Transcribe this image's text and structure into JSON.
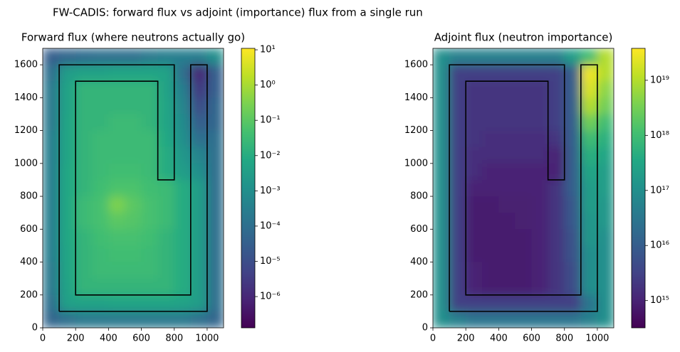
{
  "title": "FW-CADIS: forward flux vs adjoint (importance) flux from a single run",
  "chart_data": [
    {
      "type": "heatmap",
      "title": "Forward flux (where neutrons actually go)",
      "xlim": [
        0,
        1100
      ],
      "ylim": [
        0,
        1700
      ],
      "xticks": [
        0,
        200,
        400,
        600,
        800,
        1000
      ],
      "yticks": [
        0,
        200,
        400,
        600,
        800,
        1000,
        1200,
        1400,
        1600
      ],
      "xbins": [
        0,
        100,
        200,
        300,
        400,
        500,
        600,
        700,
        800,
        900,
        1000,
        1100
      ],
      "ybins": [
        1700,
        1600,
        1500,
        1400,
        1300,
        1200,
        1100,
        1000,
        900,
        800,
        700,
        600,
        500,
        400,
        300,
        200,
        100,
        0
      ],
      "z": [
        [
          3e-05,
          5e-05,
          8e-05,
          0.0001,
          0.0001,
          0.0001,
          0.0002,
          0.0003,
          0.0003,
          0.0003,
          0.001
        ],
        [
          0.0001,
          0.003,
          0.005,
          0.005,
          0.006,
          0.006,
          0.006,
          0.005,
          0.0001,
          1e-06,
          3e-05
        ],
        [
          0.0002,
          0.005,
          0.02,
          0.02,
          0.02,
          0.02,
          0.02,
          0.005,
          0.0003,
          3e-06,
          3e-05
        ],
        [
          0.0002,
          0.005,
          0.02,
          0.02,
          0.02,
          0.02,
          0.02,
          0.006,
          0.0005,
          1e-05,
          5e-05
        ],
        [
          0.0002,
          0.006,
          0.02,
          0.02,
          0.03,
          0.03,
          0.02,
          0.006,
          0.0008,
          3e-05,
          5e-05
        ],
        [
          0.0003,
          0.006,
          0.02,
          0.03,
          0.03,
          0.03,
          0.03,
          0.008,
          0.001,
          0.0001,
          0.0001
        ],
        [
          0.0003,
          0.006,
          0.02,
          0.03,
          0.03,
          0.03,
          0.03,
          0.01,
          0.002,
          0.0005,
          0.0001
        ],
        [
          0.0003,
          0.007,
          0.02,
          0.03,
          0.04,
          0.04,
          0.03,
          0.01,
          0.003,
          0.001,
          0.0001
        ],
        [
          0.0003,
          0.007,
          0.02,
          0.04,
          0.06,
          0.06,
          0.04,
          0.03,
          0.01,
          0.003,
          0.0001
        ],
        [
          0.0003,
          0.007,
          0.03,
          0.05,
          0.3,
          0.1,
          0.05,
          0.03,
          0.01,
          0.003,
          0.0001
        ],
        [
          0.0003,
          0.007,
          0.03,
          0.05,
          0.1,
          0.08,
          0.05,
          0.03,
          0.01,
          0.003,
          0.0001
        ],
        [
          0.0003,
          0.007,
          0.02,
          0.04,
          0.05,
          0.05,
          0.04,
          0.02,
          0.01,
          0.003,
          0.0001
        ],
        [
          0.0003,
          0.006,
          0.02,
          0.03,
          0.04,
          0.04,
          0.03,
          0.02,
          0.01,
          0.003,
          0.0001
        ],
        [
          0.0002,
          0.006,
          0.02,
          0.03,
          0.03,
          0.03,
          0.03,
          0.02,
          0.01,
          0.003,
          0.0001
        ],
        [
          0.0002,
          0.005,
          0.02,
          0.02,
          0.02,
          0.02,
          0.02,
          0.02,
          0.01,
          0.003,
          0.0001
        ],
        [
          0.0001,
          0.004,
          0.005,
          0.005,
          0.006,
          0.006,
          0.006,
          0.006,
          0.005,
          0.003,
          0.0001
        ],
        [
          5e-05,
          0.0001,
          0.0002,
          0.0002,
          0.0002,
          0.0002,
          0.0002,
          0.0002,
          0.0002,
          0.0001,
          5e-05
        ]
      ],
      "colormap": "viridis",
      "log_color": true,
      "clim": [
        1.3e-07,
        11
      ],
      "cticks": [
        {
          "value": 10,
          "label": "10¹"
        },
        {
          "value": 1,
          "label": "10⁰"
        },
        {
          "value": 0.1,
          "label": "10⁻¹"
        },
        {
          "value": 0.01,
          "label": "10⁻²"
        },
        {
          "value": 0.001,
          "label": "10⁻³"
        },
        {
          "value": 0.0001,
          "label": "10⁻⁴"
        },
        {
          "value": 1e-05,
          "label": "10⁻⁵"
        },
        {
          "value": 1e-06,
          "label": "10⁻⁶"
        }
      ],
      "outline": {
        "color": "#000000",
        "x": [
          100,
          100,
          800,
          800,
          700,
          700,
          200,
          200,
          900,
          900,
          1000,
          1000,
          100
        ],
        "y": [
          100,
          1600,
          1600,
          900,
          900,
          1500,
          1500,
          200,
          200,
          1600,
          1600,
          100,
          100
        ]
      }
    },
    {
      "type": "heatmap",
      "title": "Adjoint flux (neutron importance)",
      "xlim": [
        0,
        1100
      ],
      "ylim": [
        0,
        1700
      ],
      "xticks": [
        0,
        200,
        400,
        600,
        800,
        1000
      ],
      "yticks": [
        0,
        200,
        400,
        600,
        800,
        1000,
        1200,
        1400,
        1600
      ],
      "xbins": [
        0,
        100,
        200,
        300,
        400,
        500,
        600,
        700,
        800,
        900,
        1000,
        1100
      ],
      "ybins": [
        1700,
        1600,
        1500,
        1400,
        1300,
        1200,
        1100,
        1000,
        900,
        800,
        700,
        600,
        500,
        400,
        300,
        200,
        100,
        0
      ],
      "z": [
        [
          1e+17,
          5e+16,
          5e+16,
          5e+16,
          5e+16,
          5e+16,
          5e+16,
          5e+16,
          2e+17,
          1e+18,
          1e+19
        ],
        [
          1e+17,
          3000000000000000.0,
          3000000000000000.0,
          3000000000000000.0,
          3000000000000000.0,
          3000000000000000.0,
          3000000000000000.0,
          3000000000000000.0,
          1e+16,
          3e+19,
          1e+19
        ],
        [
          1e+17,
          3000000000000000.0,
          2000000000000000.0,
          2000000000000000.0,
          2000000000000000.0,
          2000000000000000.0,
          2000000000000000.0,
          3000000000000000.0,
          1e+16,
          2e+19,
          5e+18
        ],
        [
          1e+17,
          3000000000000000.0,
          2000000000000000.0,
          2000000000000000.0,
          2000000000000000.0,
          2000000000000000.0,
          2000000000000000.0,
          3000000000000000.0,
          1e+16,
          1e+19,
          3e+18
        ],
        [
          1e+17,
          3000000000000000.0,
          2000000000000000.0,
          2000000000000000.0,
          2000000000000000.0,
          2000000000000000.0,
          2000000000000000.0,
          3000000000000000.0,
          1e+16,
          3e+18,
          1e+18
        ],
        [
          1e+17,
          3000000000000000.0,
          2000000000000000.0,
          1500000000000000.0,
          1500000000000000.0,
          1500000000000000.0,
          1500000000000000.0,
          2000000000000000.0,
          1e+16,
          1e+18,
          5e+17
        ],
        [
          1e+17,
          3000000000000000.0,
          1500000000000000.0,
          1500000000000000.0,
          1500000000000000.0,
          1500000000000000.0,
          1500000000000000.0,
          1000000000000000.0,
          1e+16,
          5e+17,
          3e+17
        ],
        [
          1e+17,
          3000000000000000.0,
          1500000000000000.0,
          1000000000000000.0,
          1000000000000000.0,
          1000000000000000.0,
          1000000000000000.0,
          1000000000000000.0,
          1e+16,
          3e+17,
          2e+17
        ],
        [
          1e+17,
          3000000000000000.0,
          1000000000000000.0,
          1000000000000000.0,
          1000000000000000.0,
          1000000000000000.0,
          1000000000000000.0,
          2000000000000000.0,
          1e+16,
          2e+17,
          2e+17
        ],
        [
          1e+17,
          3000000000000000.0,
          800000000000000.0,
          800000000000000.0,
          900000000000000.0,
          900000000000000.0,
          1000000000000000.0,
          2000000000000000.0,
          8000000000000000.0,
          2e+17,
          1.5e+17
        ],
        [
          1e+17,
          3000000000000000.0,
          800000000000000.0,
          800000000000000.0,
          800000000000000.0,
          900000000000000.0,
          1000000000000000.0,
          2000000000000000.0,
          8000000000000000.0,
          1.5e+17,
          1.5e+17
        ],
        [
          1e+17,
          3000000000000000.0,
          800000000000000.0,
          800000000000000.0,
          800000000000000.0,
          800000000000000.0,
          1000000000000000.0,
          2000000000000000.0,
          6000000000000000.0,
          1.5e+17,
          1e+17
        ],
        [
          1e+17,
          3000000000000000.0,
          800000000000000.0,
          800000000000000.0,
          800000000000000.0,
          800000000000000.0,
          1000000000000000.0,
          2000000000000000.0,
          6000000000000000.0,
          1e+17,
          1e+17
        ],
        [
          1e+17,
          3000000000000000.0,
          1000000000000000.0,
          800000000000000.0,
          800000000000000.0,
          800000000000000.0,
          1000000000000000.0,
          2000000000000000.0,
          5000000000000000.0,
          1e+17,
          1e+17
        ],
        [
          1e+17,
          3000000000000000.0,
          1000000000000000.0,
          800000000000000.0,
          800000000000000.0,
          800000000000000.0,
          1000000000000000.0,
          2000000000000000.0,
          5000000000000000.0,
          1e+17,
          1e+17
        ],
        [
          1e+17,
          3000000000000000.0,
          3000000000000000.0,
          3000000000000000.0,
          3000000000000000.0,
          3000000000000000.0,
          3000000000000000.0,
          3000000000000000.0,
          3000000000000000.0,
          3e+16,
          1e+17
        ],
        [
          1e+17,
          5e+16,
          3e+16,
          3e+16,
          3e+16,
          3e+16,
          3e+16,
          3e+16,
          3e+16,
          5e+16,
          1e+17
        ]
      ],
      "colormap": "viridis",
      "log_color": true,
      "clim": [
        320000000000000.0,
        3.8e+19
      ],
      "cticks": [
        {
          "value": 1e+19,
          "label": "10¹⁹"
        },
        {
          "value": 1e+18,
          "label": "10¹⁸"
        },
        {
          "value": 1e+17,
          "label": "10¹⁷"
        },
        {
          "value": 1e+16,
          "label": "10¹⁶"
        },
        {
          "value": 1000000000000000.0,
          "label": "10¹⁵"
        }
      ],
      "outline": {
        "color": "#000000",
        "x": [
          100,
          100,
          800,
          800,
          700,
          700,
          200,
          200,
          900,
          900,
          1000,
          1000,
          100
        ],
        "y": [
          100,
          1600,
          1600,
          900,
          900,
          1500,
          1500,
          200,
          200,
          1600,
          1600,
          100,
          100
        ]
      }
    }
  ]
}
